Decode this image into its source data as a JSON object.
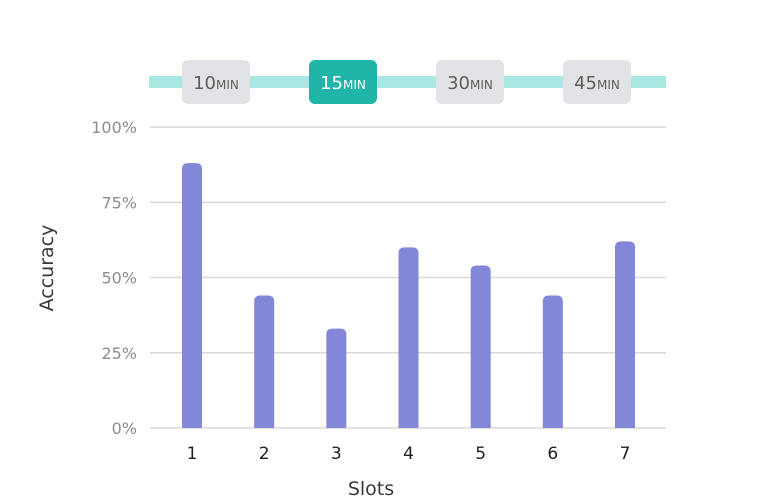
{
  "interval_selector": {
    "options": [
      {
        "value": "10",
        "unit": "MIN",
        "selected": false
      },
      {
        "value": "15",
        "unit": "MIN",
        "selected": true
      },
      {
        "value": "30",
        "unit": "MIN",
        "selected": false
      },
      {
        "value": "45",
        "unit": "MIN",
        "selected": false
      }
    ]
  },
  "chart_data": {
    "type": "bar",
    "title": "",
    "xlabel": "Slots",
    "ylabel": "Accuracy",
    "categories": [
      "1",
      "2",
      "3",
      "4",
      "5",
      "6",
      "7"
    ],
    "values": [
      88,
      44,
      33,
      60,
      54,
      44,
      62
    ],
    "ylim": [
      0,
      100
    ],
    "yticks": [
      0,
      25,
      50,
      75,
      100
    ],
    "ytick_labels": [
      "0%",
      "25%",
      "50%",
      "75%",
      "100%"
    ],
    "grid": true,
    "legend": "none"
  },
  "colors": {
    "bar": "#8387d8",
    "grid": "#d9d9d9",
    "track": "#a8e8e2",
    "chip_selected_bg": "#1fb5a9",
    "chip_selected_text": "#ffffff",
    "chip_bg": "#e2e3e6",
    "chip_text": "#5e5e5e"
  }
}
